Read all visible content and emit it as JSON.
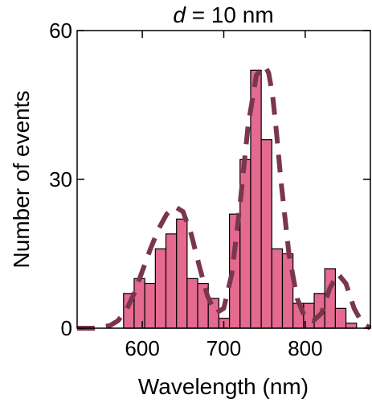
{
  "chart_data": {
    "type": "bar",
    "title_var": "d",
    "title_rest": " = 10 nm",
    "xlabel": "Wavelength (nm)",
    "ylabel": "Number of events",
    "xlim": [
      520,
      880
    ],
    "ylim": [
      0,
      60
    ],
    "xticks": [
      {
        "value": 600,
        "label": "600"
      },
      {
        "value": 700,
        "label": "700"
      },
      {
        "value": 800,
        "label": "800"
      }
    ],
    "yticks": [
      {
        "value": 0,
        "label": "0"
      },
      {
        "value": 30,
        "label": "30"
      },
      {
        "value": 60,
        "label": "60"
      }
    ],
    "bin_width": 13,
    "bins": [
      {
        "x": 577,
        "y": 7
      },
      {
        "x": 590,
        "y": 10
      },
      {
        "x": 603,
        "y": 9
      },
      {
        "x": 616,
        "y": 16
      },
      {
        "x": 629,
        "y": 19
      },
      {
        "x": 642,
        "y": 22
      },
      {
        "x": 655,
        "y": 10
      },
      {
        "x": 668,
        "y": 9
      },
      {
        "x": 681,
        "y": 6
      },
      {
        "x": 694,
        "y": 2
      },
      {
        "x": 707,
        "y": 23
      },
      {
        "x": 720,
        "y": 34
      },
      {
        "x": 733,
        "y": 52
      },
      {
        "x": 746,
        "y": 38
      },
      {
        "x": 759,
        "y": 16
      },
      {
        "x": 772,
        "y": 15
      },
      {
        "x": 785,
        "y": 5
      },
      {
        "x": 798,
        "y": 5
      },
      {
        "x": 811,
        "y": 7
      },
      {
        "x": 824,
        "y": 12
      },
      {
        "x": 837,
        "y": 4
      },
      {
        "x": 850,
        "y": 1
      }
    ],
    "fit": {
      "x": [
        520,
        540,
        560,
        570,
        580,
        590,
        600,
        610,
        620,
        630,
        640,
        650,
        660,
        670,
        680,
        690,
        700,
        710,
        720,
        730,
        740,
        750,
        755,
        760,
        765,
        770,
        780,
        790,
        800,
        810,
        820,
        830,
        840,
        850,
        860,
        870,
        880
      ],
      "y": [
        0,
        0,
        0.5,
        1.5,
        3.5,
        7,
        11.5,
        16,
        20,
        23,
        24.5,
        23.5,
        19,
        12.5,
        6.5,
        3,
        4,
        11,
        25,
        41,
        51,
        53,
        51.5,
        47,
        39,
        30,
        15,
        6,
        2,
        1.5,
        3,
        8,
        11,
        9,
        4,
        1,
        0
      ]
    },
    "bar_color": "#e46a90",
    "bar_edge": "#000000",
    "fit_color": "#7a3650",
    "grid": false
  }
}
